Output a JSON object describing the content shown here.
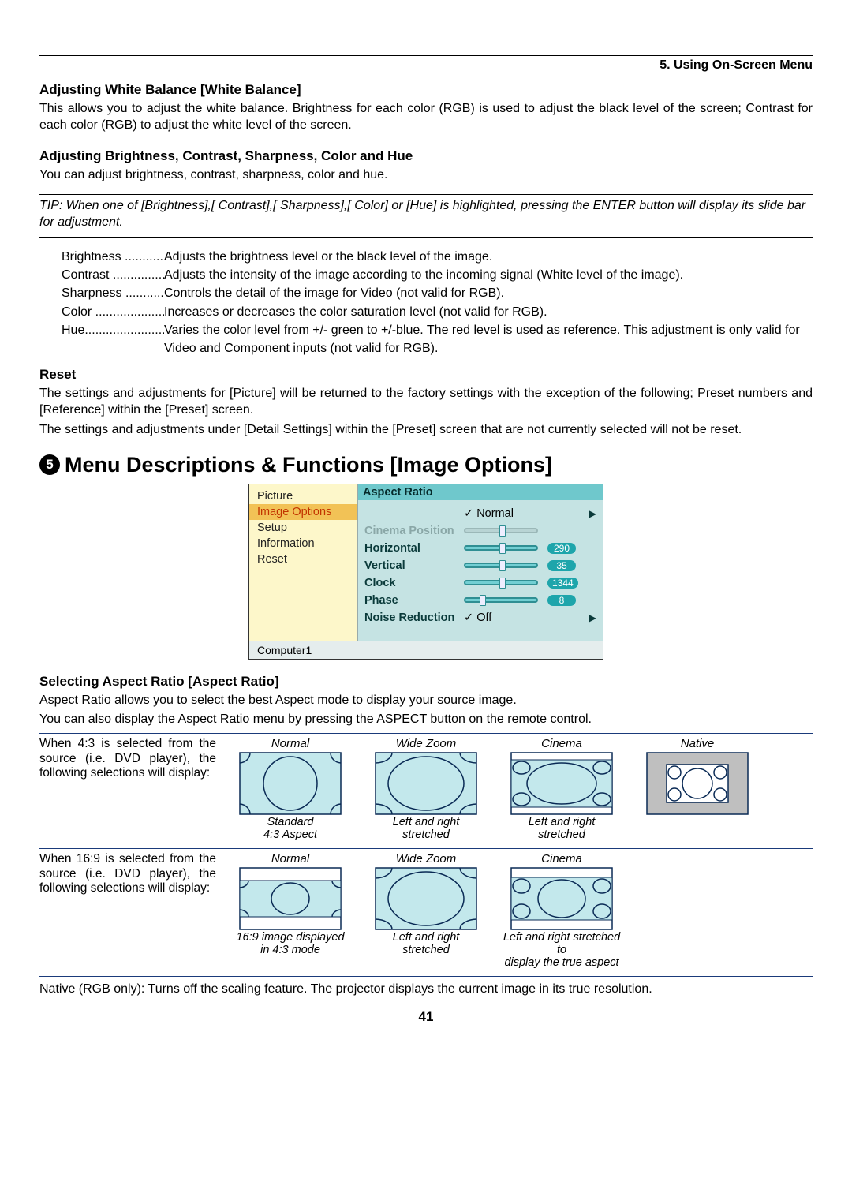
{
  "chapter": "5. Using On-Screen Menu",
  "wb": {
    "heading": "Adjusting White Balance [White Balance]",
    "body": "This allows you to adjust the white balance. Brightness for each color (RGB) is used to adjust the black level of the screen; Contrast for each color (RGB) to adjust the white level of the screen."
  },
  "adj": {
    "heading": "Adjusting Brightness, Contrast, Sharpness, Color and Hue",
    "body": "You can adjust brightness, contrast, sharpness, color and hue.",
    "tip": "TIP: When one of [Brightness],[ Contrast],[ Sharpness],[ Color] or [Hue] is highlighted, pressing the ENTER button will display its slide bar for adjustment.",
    "defs": [
      {
        "term": "Brightness ............",
        "desc": "Adjusts the brightness level or the black level of the image."
      },
      {
        "term": "Contrast ................",
        "desc": "Adjusts the intensity of the image according to the incoming signal (White level of the image)."
      },
      {
        "term": "Sharpness .............",
        "desc": "Controls the detail of the image for Video (not valid for RGB)."
      },
      {
        "term": "Color .....................",
        "desc": "Increases or decreases the color saturation level (not valid for RGB)."
      },
      {
        "term": "Hue........................",
        "desc": "Varies the color level from +/- green to +/-blue. The red level is used as reference. This adjustment is only valid for Video and Component inputs (not valid for RGB)."
      }
    ]
  },
  "reset": {
    "heading": "Reset",
    "p1": "The settings and adjustments for [Picture] will be returned to the factory settings with the exception of the following; Preset numbers and [Reference] within the [Preset] screen.",
    "p2": "The settings and adjustments under [Detail Settings] within the [Preset] screen that are not currently selected will not be reset."
  },
  "section5": {
    "num": "5",
    "title": "Menu Descriptions & Functions [Image Options]"
  },
  "osd": {
    "leftItems": [
      "Picture",
      "Image Options",
      "Setup",
      "Information",
      "Reset"
    ],
    "selectedIndex": 1,
    "heading": "Aspect Ratio",
    "rows": {
      "aspect": {
        "label": "",
        "value": "Normal"
      },
      "cinema": {
        "label": "Cinema Position"
      },
      "horizontal": {
        "label": "Horizontal",
        "value": "290",
        "thumb_pct": 48
      },
      "vertical": {
        "label": "Vertical",
        "value": "35",
        "thumb_pct": 48
      },
      "clock": {
        "label": "Clock",
        "value": "1344",
        "thumb_pct": 48
      },
      "phase": {
        "label": "Phase",
        "value": "8",
        "thumb_pct": 20
      },
      "noise": {
        "label": "Noise Reduction",
        "value": "Off"
      }
    },
    "footer": "Computer1"
  },
  "aspect": {
    "heading": "Selecting Aspect Ratio [Aspect Ratio]",
    "p1": "Aspect Ratio allows you to select the best Aspect mode to display your source image.",
    "p2": "You can also display the Aspect Ratio menu by pressing the ASPECT button on the remote control.",
    "row43": {
      "desc": "When 4:3 is selected from the source (i.e. DVD player), the following selections will display:",
      "cols": [
        {
          "top": "Normal",
          "sub": "Standard\n4:3 Aspect"
        },
        {
          "top": "Wide Zoom",
          "sub": "Left and right\nstretched"
        },
        {
          "top": "Cinema",
          "sub": "Left and right\nstretched"
        },
        {
          "top": "Native",
          "sub": ""
        }
      ]
    },
    "row169": {
      "desc": "When 16:9 is selected from the source (i.e. DVD player), the following selections will display:",
      "cols": [
        {
          "top": "Normal",
          "sub": "16:9 image displayed\nin 4:3 mode"
        },
        {
          "top": "Wide Zoom",
          "sub": "Left and right\nstretched"
        },
        {
          "top": "Cinema",
          "sub": "Left and right stretched to\ndisplay the true aspect"
        },
        {
          "top": "",
          "sub": ""
        }
      ]
    },
    "native_note": "Native (RGB only): Turns off the scaling feature. The projector displays the current image in its true resolution."
  },
  "styling": {
    "osd_bg": "#c5e3e3",
    "osd_left_bg": "#fdf7ca",
    "osd_sel_bg": "#f2c256",
    "osd_sel_fg": "#c23400",
    "osd_heading_bg": "#6fc8cc",
    "osd_badge_bg": "#1ea5ab",
    "ar_fill": "#c3e8ec",
    "ar_stroke": "#0a2a55",
    "ar_native_fill": "#bfbfbf",
    "rule_color": "#1a3a7a"
  },
  "page": "41"
}
